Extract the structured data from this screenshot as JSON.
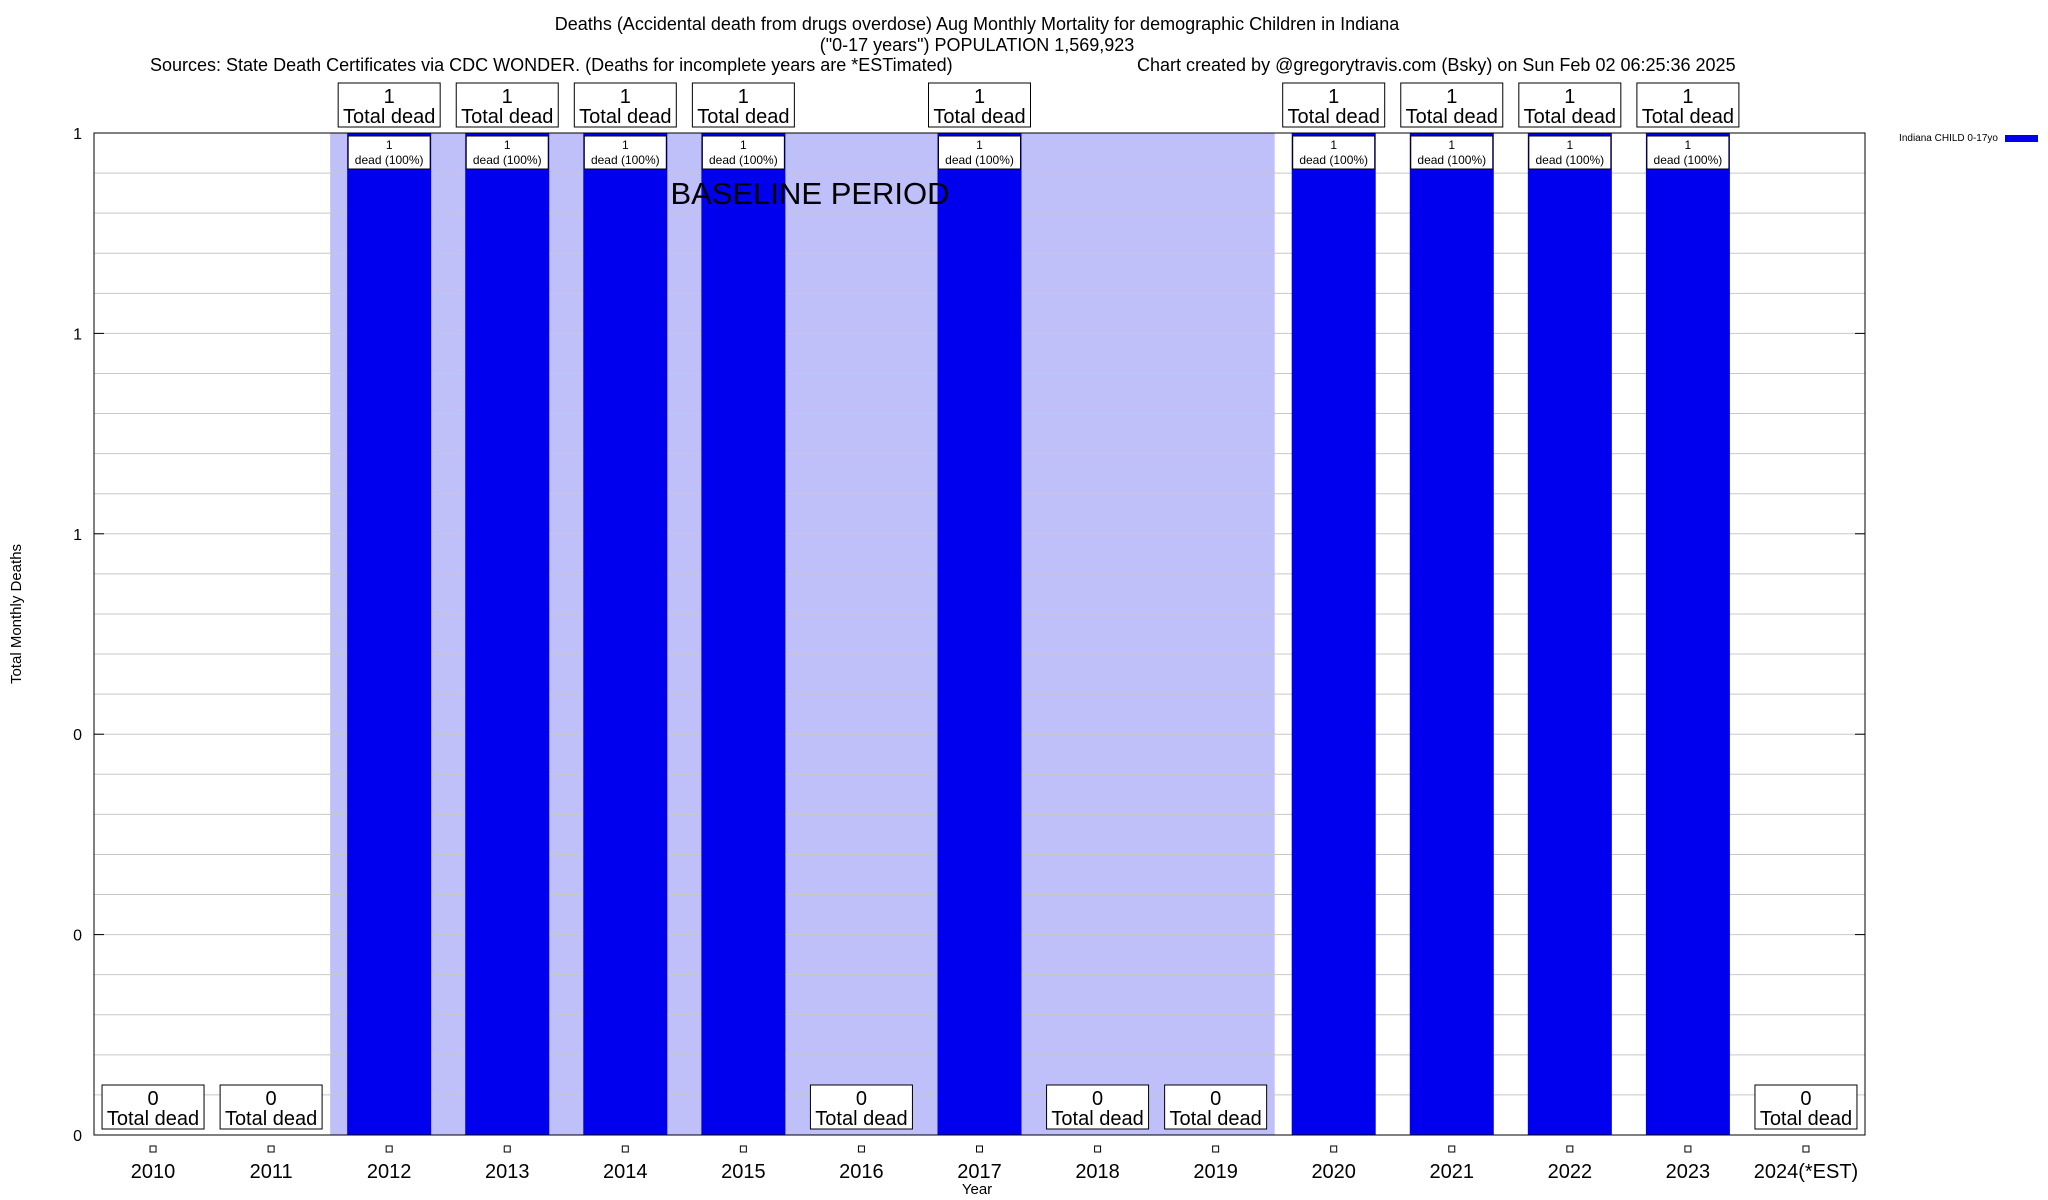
{
  "header": {
    "title_line1": "Deaths (Accidental death from drugs overdose) Aug Monthly Mortality for demographic Children in Indiana",
    "title_line2": "(\"0-17 years\") POPULATION 1,569,923",
    "sources": "Sources: State Death Certificates via CDC WONDER. (Deaths for incomplete years are *ESTimated)",
    "credit": "Chart created by @gregorytravis.com (Bsky) on Sun Feb 02 06:25:36 2025"
  },
  "colors": {
    "bar": "#0000ee",
    "baseline": "#bfbff9",
    "grid": "#c8c8c8",
    "frame": "#000000"
  },
  "chart_data": {
    "type": "bar",
    "title": "Deaths (Accidental death from drugs overdose) Aug Monthly Mortality for demographic Children in Indiana",
    "xlabel": "Year",
    "ylabel": "Total Monthly Deaths",
    "categories": [
      "2010",
      "2011",
      "2012",
      "2013",
      "2014",
      "2015",
      "2016",
      "2017",
      "2018",
      "2019",
      "2020",
      "2021",
      "2022",
      "2023",
      "2024(*EST)"
    ],
    "series": [
      {
        "name": "Indiana CHILD 0-17yo",
        "values": [
          0,
          0,
          1,
          1,
          1,
          1,
          0,
          1,
          0,
          0,
          1,
          1,
          1,
          1,
          0
        ]
      }
    ],
    "total_labels": [
      "0",
      "0",
      "1",
      "1",
      "1",
      "1",
      "0",
      "1",
      "0",
      "0",
      "1",
      "1",
      "1",
      "1",
      "0"
    ],
    "total_suffix": "Total dead",
    "inner_labels": [
      {
        "index": 2,
        "count": "1",
        "text": "dead (100%)"
      },
      {
        "index": 3,
        "count": "1",
        "text": "dead (100%)"
      },
      {
        "index": 4,
        "count": "1",
        "text": "dead (100%)"
      },
      {
        "index": 5,
        "count": "1",
        "text": "dead (100%)"
      },
      {
        "index": 7,
        "count": "1",
        "text": "dead (100%)"
      },
      {
        "index": 10,
        "count": "1",
        "text": "dead (100%)"
      },
      {
        "index": 11,
        "count": "1",
        "text": "dead (100%)"
      },
      {
        "index": 12,
        "count": "1",
        "text": "dead (100%)"
      },
      {
        "index": 13,
        "count": "1",
        "text": "dead (100%)"
      }
    ],
    "ylim": [
      0,
      1
    ],
    "ytick_values": [
      0,
      0.2,
      0.4,
      0.6,
      0.8,
      1.0
    ],
    "ytick_labels": [
      "0",
      "0",
      "0",
      "1",
      "1",
      "1"
    ],
    "minor_grid_step": 0.04,
    "baseline_period": {
      "label": "BASELINE PERIOD",
      "start_index": 2,
      "end_index": 9
    },
    "legend": {
      "position": "top-right",
      "label": "Indiana CHILD 0-17yo"
    },
    "grid": true
  }
}
